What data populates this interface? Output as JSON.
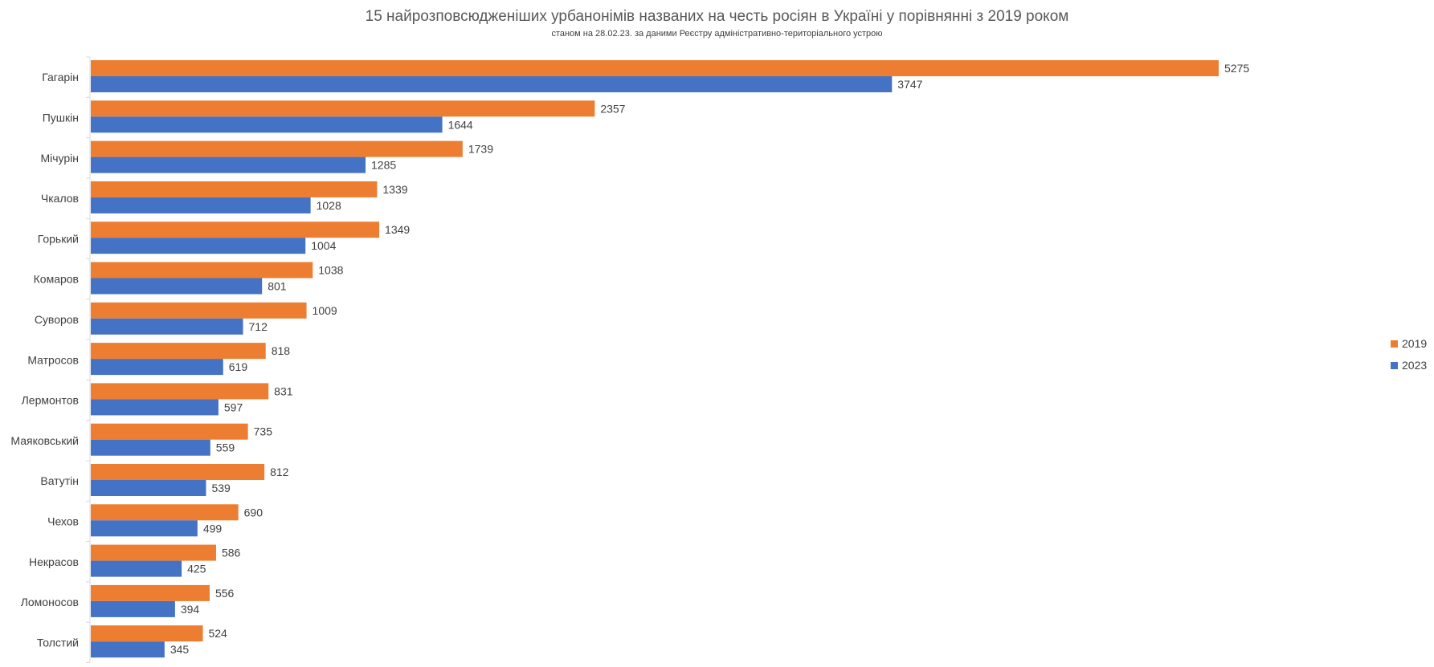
{
  "chart_data": {
    "type": "bar",
    "orientation": "horizontal",
    "title": "15 найрозповсюдженіших урбанонімів названих на честь росіян в Україні у порівнянні з 2019 роком",
    "subtitle": "станом на 28.02.23. за даними Реєстру адміністративно-територіального устрою",
    "categories": [
      "Гагарін",
      "Пушкін",
      "Мічурін",
      "Чкалов",
      "Горький",
      "Комаров",
      "Суворов",
      "Матросов",
      "Лермонтов",
      "Маяковський",
      "Ватутін",
      "Чехов",
      "Некрасов",
      "Ломоносов",
      "Толстий"
    ],
    "series": [
      {
        "name": "2019",
        "color": "#ED7D31",
        "values": [
          5275,
          2357,
          1739,
          1339,
          1349,
          1038,
          1009,
          818,
          831,
          735,
          812,
          690,
          586,
          556,
          524
        ]
      },
      {
        "name": "2023",
        "color": "#4472C4",
        "values": [
          3747,
          1644,
          1285,
          1028,
          1004,
          801,
          712,
          619,
          597,
          559,
          539,
          499,
          425,
          394,
          345
        ]
      }
    ],
    "xlim": [
      0,
      6200
    ],
    "legend_position": "right",
    "grid": false,
    "data_labels": true
  }
}
